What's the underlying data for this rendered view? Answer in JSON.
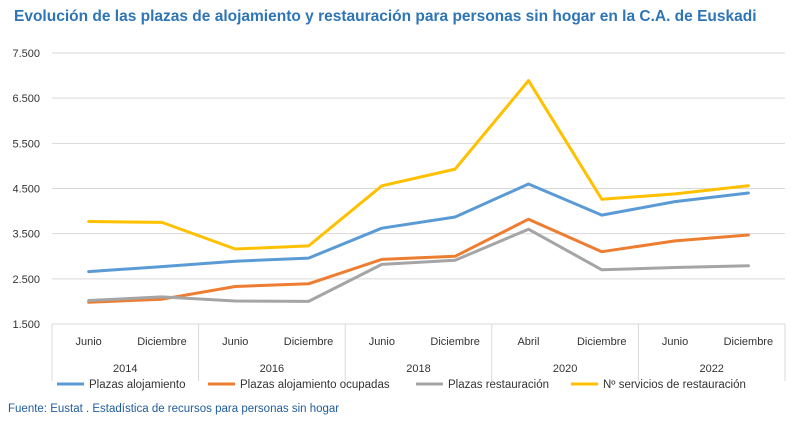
{
  "chart_data": {
    "type": "line",
    "title": "Evolución de las plazas de alojamiento y restauración para personas sin hogar en la C.A. de Euskadi",
    "source": "Fuente: Eustat . Estadística de recursos para personas sin hogar",
    "categories": [
      "Junio",
      "Diciembre",
      "Junio",
      "Diciembre",
      "Junio",
      "Diciembre",
      "Abril",
      "Diciembre",
      "Junio",
      "Diciembre"
    ],
    "groups": [
      {
        "label": "2014",
        "span": 2
      },
      {
        "label": "2016",
        "span": 2
      },
      {
        "label": "2018",
        "span": 2
      },
      {
        "label": "2020",
        "span": 2
      },
      {
        "label": "2022",
        "span": 2
      }
    ],
    "ylim": [
      1500,
      7500
    ],
    "yticks": [
      1500,
      2500,
      3500,
      4500,
      5500,
      6500,
      7500
    ],
    "ytick_labels": [
      "1.500",
      "2.500",
      "3.500",
      "4.500",
      "5.500",
      "6.500",
      "7.500"
    ],
    "grid": true,
    "legend_position": "bottom",
    "series": [
      {
        "name": "Plazas  alojamiento",
        "color": "#5b9bd5",
        "values": [
          2660,
          2770,
          2890,
          2960,
          3620,
          3870,
          4600,
          3910,
          4210,
          4400
        ]
      },
      {
        "name": "Plazas  alojamiento ocupadas",
        "color": "#ed7d31",
        "values": [
          1980,
          2050,
          2330,
          2390,
          2930,
          3000,
          3820,
          3100,
          3340,
          3470
        ]
      },
      {
        "name": "Plazas restauración",
        "color": "#a5a5a5",
        "values": [
          2020,
          2100,
          2010,
          2000,
          2820,
          2910,
          3600,
          2700,
          2750,
          2790
        ]
      },
      {
        "name": "Nº servicios de restauración",
        "color": "#ffc000",
        "values": [
          3770,
          3750,
          3160,
          3230,
          4560,
          4930,
          6890,
          4260,
          4380,
          4560
        ]
      }
    ]
  }
}
